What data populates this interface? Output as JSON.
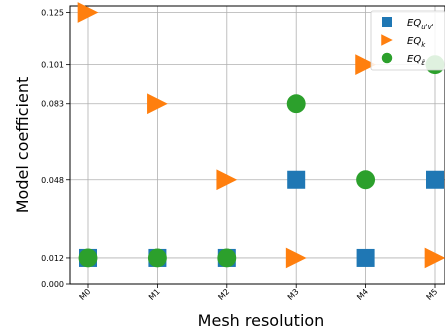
{
  "chart_data": {
    "type": "scatter",
    "xlabel": "Mesh resolution",
    "ylabel": "Model coefficient",
    "categories": [
      "M0",
      "M1",
      "M2",
      "M3",
      "M4",
      "M5"
    ],
    "y_ticks": [
      "0.000",
      "0.012",
      "0.048",
      "0.083",
      "0.101",
      "0.125"
    ],
    "ylim": [
      0,
      0.128
    ],
    "grid": true,
    "legend_position": "top-right",
    "series": [
      {
        "name": "EQ",
        "sub": "u'v'",
        "marker": "square",
        "color": "#1f77b4",
        "values": [
          0.012,
          0.012,
          0.012,
          0.048,
          0.012,
          0.048
        ]
      },
      {
        "name": "EQ",
        "sub": "k",
        "marker": "triangle-right",
        "color": "#ff7f0e",
        "values": [
          0.125,
          0.083,
          0.048,
          0.012,
          0.101,
          0.012
        ]
      },
      {
        "name": "EQ",
        "sub": "ε̃",
        "marker": "circle",
        "color": "#2ca02c",
        "values": [
          0.012,
          0.012,
          0.012,
          0.083,
          0.048,
          0.101
        ]
      }
    ]
  }
}
